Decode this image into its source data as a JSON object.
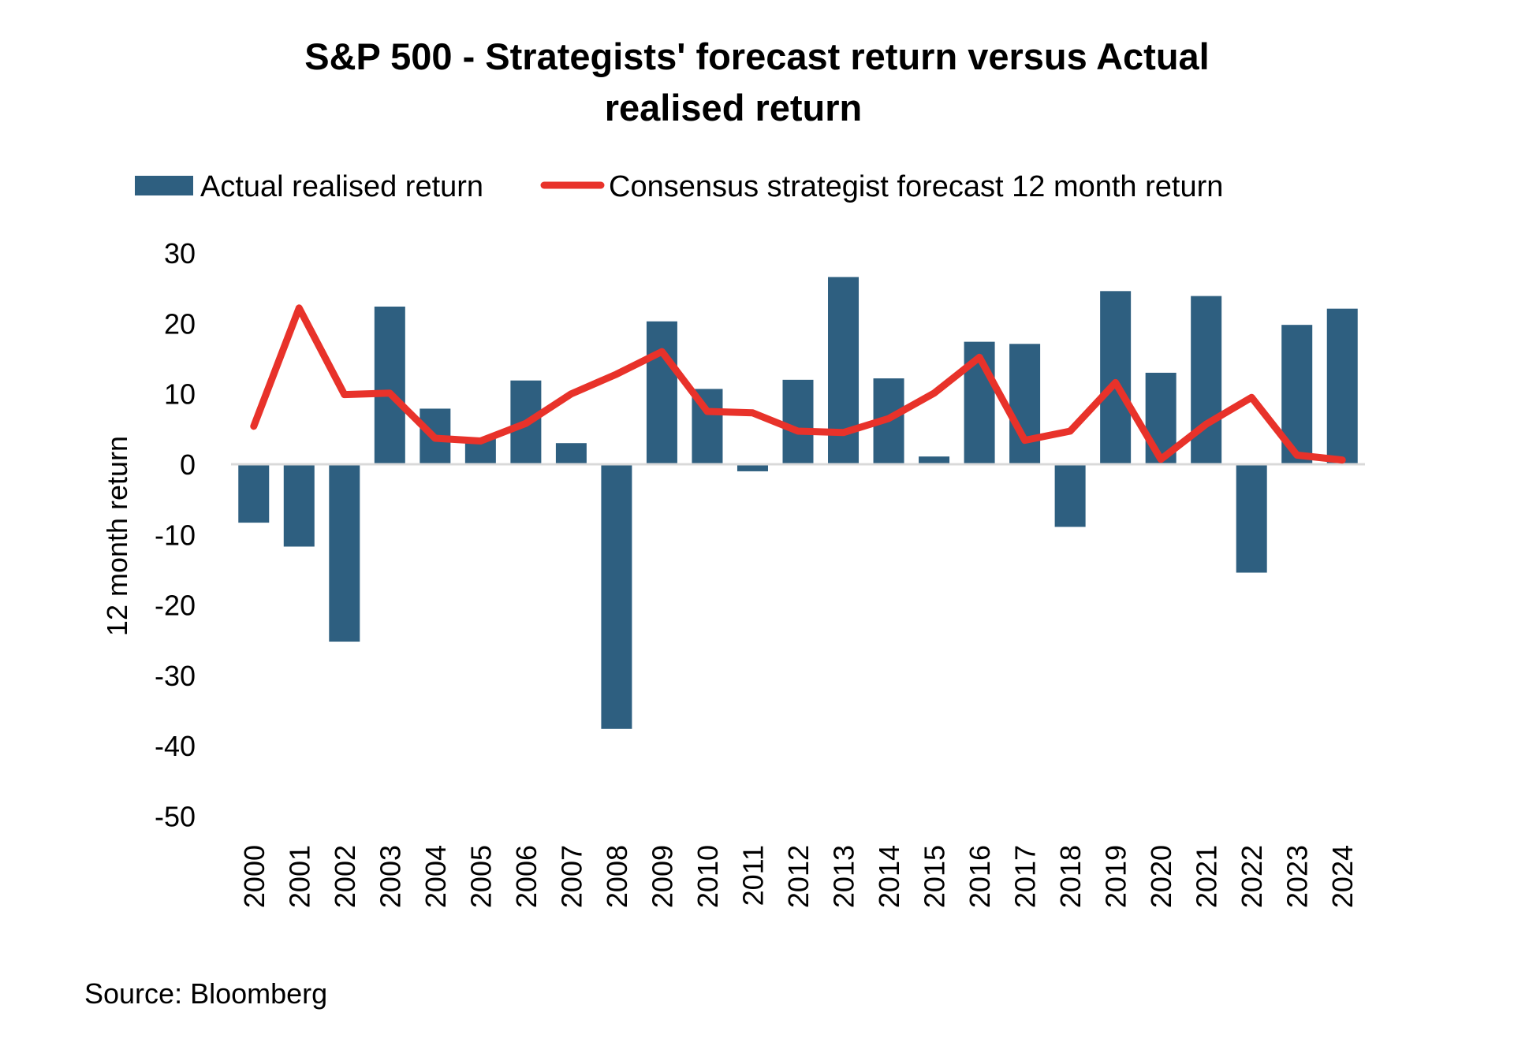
{
  "chart_data": {
    "type": "bar",
    "title": [
      "S&P 500 - Strategists' forecast return versus Actual",
      "realised return"
    ],
    "xlabel": "",
    "ylabel": "12 month return",
    "ylim": [
      -50,
      30
    ],
    "yticks": [
      30,
      20,
      10,
      0,
      -10,
      -20,
      -30,
      -40,
      -50
    ],
    "grid": false,
    "legend_position": "top-center",
    "categories": [
      "2000",
      "2001",
      "2002",
      "2003",
      "2004",
      "2005",
      "2006",
      "2007",
      "2008",
      "2009",
      "2010",
      "2011",
      "2012",
      "2013",
      "2014",
      "2015",
      "2016",
      "2017",
      "2018",
      "2019",
      "2020",
      "2021",
      "2022",
      "2023",
      "2024"
    ],
    "series": [
      {
        "name": "Actual realised return",
        "type": "bar",
        "color": "#2e5f80",
        "values": [
          -8.3,
          -11.7,
          -25.2,
          22.4,
          7.9,
          3.8,
          11.9,
          3.0,
          -37.6,
          20.3,
          10.7,
          -1.0,
          12.0,
          26.6,
          12.2,
          1.1,
          17.4,
          17.1,
          -8.9,
          24.6,
          13.0,
          23.9,
          -15.4,
          19.8,
          22.1
        ]
      },
      {
        "name": "Consensus strategist forecast 12 month return",
        "type": "line",
        "color": "#e8322a",
        "values": [
          5.4,
          22.2,
          9.9,
          10.1,
          3.7,
          3.3,
          5.8,
          10.0,
          12.8,
          16.0,
          7.5,
          7.3,
          4.7,
          4.5,
          6.5,
          10.1,
          15.2,
          3.4,
          4.7,
          11.6,
          0.7,
          5.7,
          9.5,
          1.3,
          0.6
        ]
      }
    ],
    "source": "Source: Bloomberg"
  }
}
